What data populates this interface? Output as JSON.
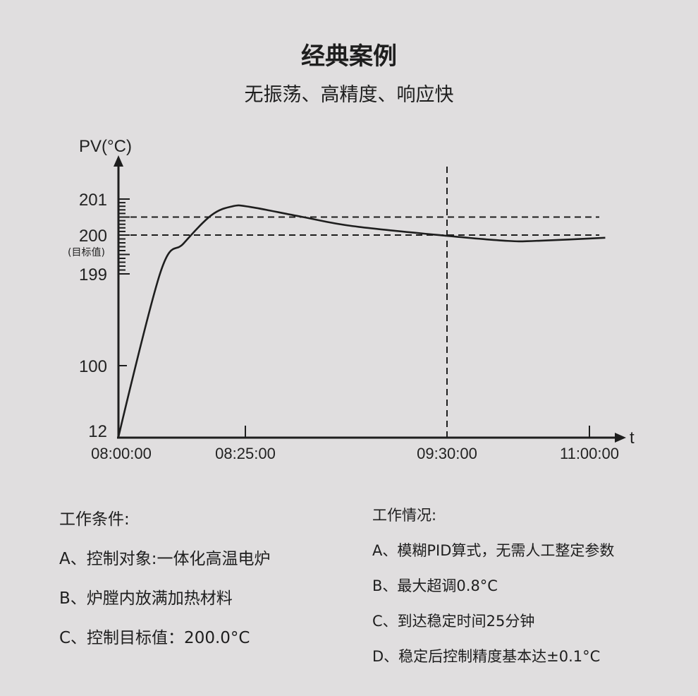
{
  "header": {
    "title": "经典案例",
    "subtitle": "无振荡、高精度、响应快"
  },
  "chart_data": {
    "type": "line",
    "ylabel": "PV(°C)",
    "xlabel": "t",
    "y_ticks": [
      "201",
      "200",
      "199",
      "100",
      "12"
    ],
    "y_tick_values": [
      201,
      200,
      199,
      100,
      12
    ],
    "y_note": "(目标值)",
    "x_ticks": [
      "08:00:00",
      "08:25:00",
      "09:30:00",
      "11:00:00"
    ],
    "x_tick_minutes": [
      0,
      25,
      90,
      180
    ],
    "axis_scale": "broken/non-linear",
    "reference_lines": {
      "horizontal": [
        200,
        200.5
      ],
      "vertical": [
        "09:30:00"
      ],
      "style": "dashed"
    },
    "series": [
      {
        "x_minutes": [
          0,
          8.3,
          12.8,
          18.3,
          22.5,
          26.6,
          43.6,
          59.5,
          90,
          128.3,
          146,
          190
        ],
        "values": [
          12,
          199.05,
          199.78,
          200.55,
          200.8,
          200.78,
          200.5,
          200.25,
          199.98,
          199.85,
          199.85,
          199.93
        ]
      }
    ],
    "line_color": "#1e1e1e"
  },
  "conditions": {
    "heading": "工作条件:",
    "items": [
      "A、控制对象:一体化高温电炉",
      "B、炉膛内放满加热材料",
      "C、控制目标值：200.0°C"
    ]
  },
  "results": {
    "heading": "工作情况:",
    "items": [
      "A、模糊PID算式，无需人工整定参数",
      "B、最大超调0.8°C",
      "C、到达稳定时间25分钟",
      "D、稳定后控制精度基本达±0.1°C"
    ]
  }
}
